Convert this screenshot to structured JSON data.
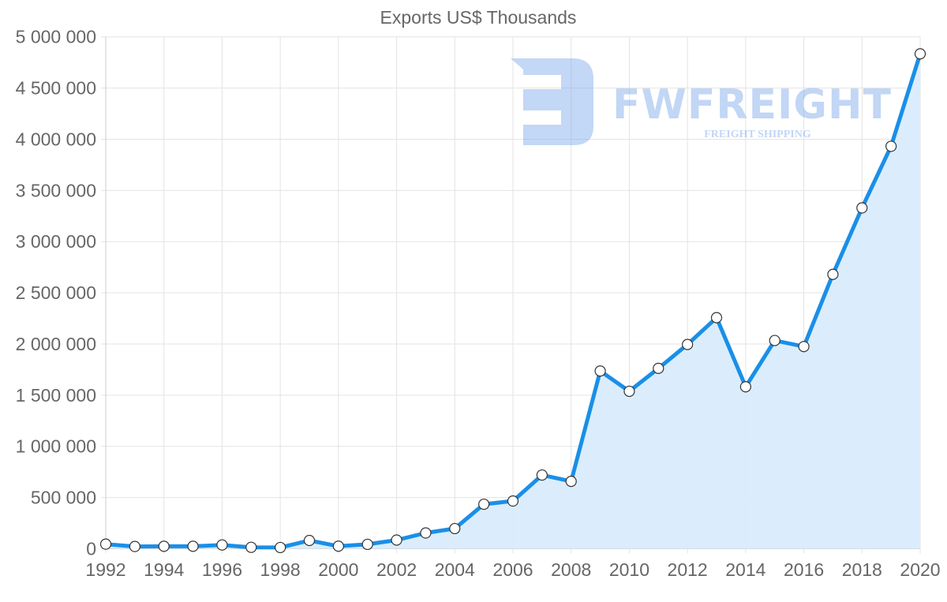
{
  "chart_data": {
    "type": "area",
    "title": "Exports US$ Thousands",
    "xlabel": "",
    "ylabel": "",
    "ylim": [
      0,
      5000000
    ],
    "yticks": [
      0,
      500000,
      1000000,
      1500000,
      2000000,
      2500000,
      3000000,
      3500000,
      4000000,
      4500000,
      5000000
    ],
    "ytick_labels": [
      "0",
      "500 000",
      "1 000 000",
      "1 500 000",
      "2 000 000",
      "2 500 000",
      "3 000 000",
      "3 500 000",
      "4 000 000",
      "4 500 000",
      "5 000 000"
    ],
    "xtick_labels": [
      "1992",
      "1994",
      "1996",
      "1998",
      "2000",
      "2002",
      "2004",
      "2006",
      "2008",
      "2010",
      "2012",
      "2014",
      "2016",
      "2018",
      "2020"
    ],
    "grid": true,
    "legend": null,
    "x": [
      1992,
      1993,
      1994,
      1995,
      1996,
      1997,
      1998,
      1999,
      2000,
      2001,
      2002,
      2003,
      2004,
      2005,
      2006,
      2007,
      2008,
      2009,
      2010,
      2011,
      2012,
      2013,
      2014,
      2015,
      2016,
      2017,
      2018,
      2019,
      2020
    ],
    "series": [
      {
        "name": "Exports US$ Thousands",
        "values": [
          45000,
          22000,
          24000,
          24000,
          37000,
          14000,
          12000,
          81000,
          25000,
          43000,
          85000,
          154000,
          197000,
          435000,
          466000,
          720000,
          658000,
          1736000,
          1538000,
          1762000,
          1995000,
          2257000,
          1582000,
          2034000,
          1975000,
          2680000,
          3329000,
          3931000,
          4834000
        ],
        "line_color": "#1a8fe8",
        "fill_color": "#d9ecfc"
      }
    ]
  },
  "watermark": {
    "brand": "FWFREIGHT",
    "tagline": "FREIGHT SHIPPING",
    "color": "#7aa6ea"
  }
}
